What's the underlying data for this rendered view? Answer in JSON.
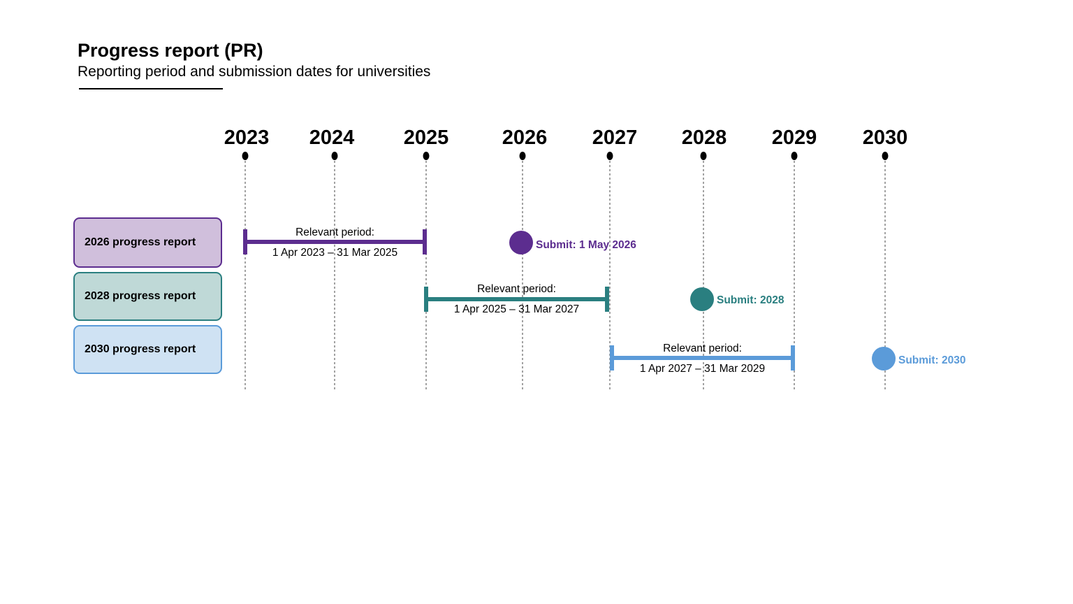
{
  "header": {
    "title": "Progress report (PR)",
    "subtitle": "Reporting period and submission dates for universities"
  },
  "years": [
    "2023",
    "2024",
    "2025",
    "2026",
    "2027",
    "2028",
    "2029",
    "2030"
  ],
  "reports": [
    {
      "label": "2026 progress report",
      "period_heading": "Relevant period:",
      "period_range": "1 Apr 2023 – 31 Mar 2025",
      "period_start": "2023",
      "period_end": "2025",
      "submit_label": "Submit: 1 May 2026",
      "submit_year": "2026",
      "color": "#5c2d8f",
      "fill": "#d0bfdc"
    },
    {
      "label": "2028 progress report",
      "period_heading": "Relevant period:",
      "period_range": "1 Apr 2025 – 31 Mar 2027",
      "period_start": "2025",
      "period_end": "2027",
      "submit_label": "Submit: 2028",
      "submit_year": "2028",
      "color": "#2a7f80",
      "fill": "#bfd9d7"
    },
    {
      "label": "2030 progress report",
      "period_heading": "Relevant period:",
      "period_range": "1 Apr 2027 – 31 Mar 2029",
      "period_start": "2027",
      "period_end": "2029",
      "submit_label": "Submit: 2030",
      "submit_year": "2030",
      "color": "#5b9bd9",
      "fill": "#cfe2f3"
    }
  ]
}
